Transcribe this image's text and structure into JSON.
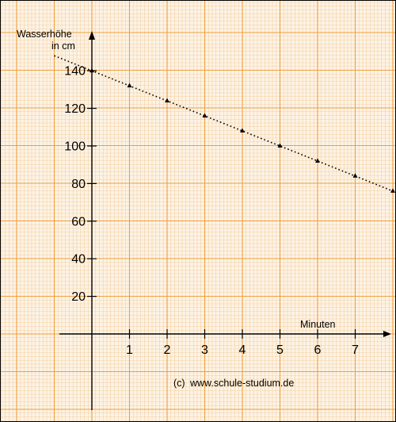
{
  "colors": {
    "paper": "#fdf3e6",
    "grid_minor": "#f4cf9f",
    "grid_major": "#ef9f3f",
    "ink": "#000000"
  },
  "watermark": {
    "symbol": "(c)",
    "text": "www.schule-studium.de"
  },
  "chart_data": {
    "type": "line",
    "title": "",
    "ylabel_line1": "Wasserhöhe",
    "ylabel_line2": "in cm",
    "xlabel": "Minuten",
    "x_ticks": [
      1,
      2,
      3,
      4,
      5,
      6,
      7
    ],
    "y_ticks": [
      20,
      40,
      60,
      80,
      100,
      120,
      140
    ],
    "xlim": [
      -1,
      8
    ],
    "ylim": [
      -20,
      160
    ],
    "grid": true,
    "legend": "none",
    "series": [
      {
        "x": [
          0,
          1,
          2,
          3,
          4,
          5,
          6,
          7,
          8
        ],
        "y": [
          140,
          132,
          124,
          116,
          108,
          100,
          92,
          84,
          76
        ]
      }
    ],
    "trend_line": {
      "from": [
        -1,
        148
      ],
      "to": [
        8,
        76
      ]
    }
  }
}
